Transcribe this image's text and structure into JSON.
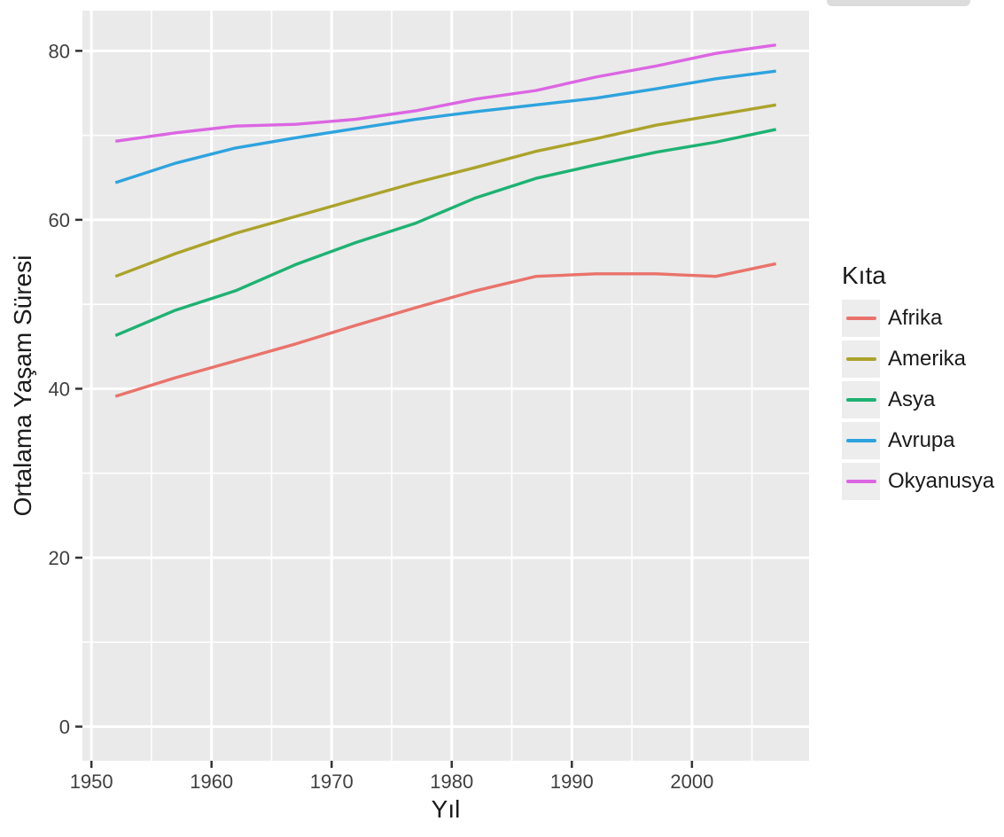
{
  "chart_data": {
    "type": "line",
    "title": "",
    "xlabel": "Yıl",
    "ylabel": "Ortalama Yaşam Süresi",
    "legend_title": "Kıta",
    "legend_position": "right",
    "grid": true,
    "panel_bg": "#EAEAEA",
    "grid_color": "#FFFFFF",
    "tick_color": "#333333",
    "tick_label_color": "#404040",
    "x": [
      1952,
      1957,
      1962,
      1967,
      1972,
      1977,
      1982,
      1987,
      1992,
      1997,
      2002,
      2007
    ],
    "series": [
      {
        "name": "Afrika",
        "color": "#E9736B",
        "values": [
          39.1,
          41.3,
          43.3,
          45.3,
          47.5,
          49.6,
          51.6,
          53.3,
          53.6,
          53.6,
          53.3,
          54.8
        ]
      },
      {
        "name": "Amerika",
        "color": "#ABA32B",
        "values": [
          53.3,
          56.0,
          58.4,
          60.4,
          62.4,
          64.4,
          66.2,
          68.1,
          69.6,
          71.2,
          72.4,
          73.6
        ]
      },
      {
        "name": "Asya",
        "color": "#1EB272",
        "values": [
          46.3,
          49.3,
          51.6,
          54.7,
          57.3,
          59.6,
          62.6,
          64.9,
          66.5,
          68.0,
          69.2,
          70.7
        ]
      },
      {
        "name": "Avrupa",
        "color": "#2EA3DE",
        "values": [
          64.4,
          66.7,
          68.5,
          69.7,
          70.8,
          71.9,
          72.8,
          73.6,
          74.4,
          75.5,
          76.7,
          77.6
        ]
      },
      {
        "name": "Okyanusya",
        "color": "#DC66E2",
        "values": [
          69.3,
          70.3,
          71.1,
          71.3,
          71.9,
          72.9,
          74.3,
          75.3,
          76.9,
          78.2,
          79.7,
          80.7
        ]
      }
    ],
    "xlim": [
      1949.25,
      2009.75
    ],
    "ylim": [
      -4.04,
      84.76
    ],
    "xticks": [
      1950,
      1960,
      1970,
      1980,
      1990,
      2000
    ],
    "yticks": [
      0,
      20,
      40,
      60,
      80
    ],
    "xminor": [
      1955,
      1965,
      1975,
      1985,
      1995,
      2005
    ],
    "yminor": [
      10,
      30,
      50,
      70
    ]
  }
}
